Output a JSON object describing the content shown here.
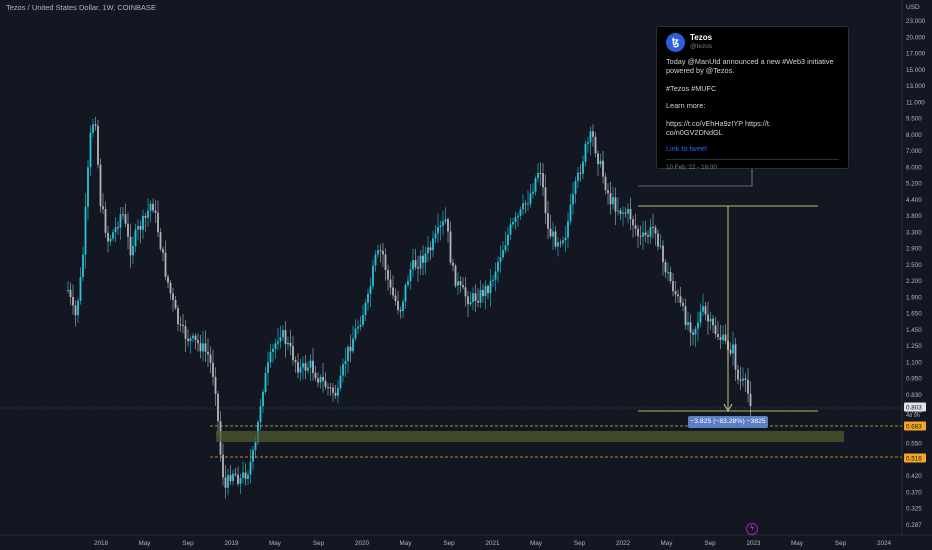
{
  "header": {
    "title": "Tezos / United States Dollar, 1W, COINBASE"
  },
  "axis": {
    "currency": "USD",
    "price_ticks": [
      "23.000",
      "20.000",
      "17.000",
      "15.000",
      "13.000",
      "11.000",
      "9.500",
      "8.000",
      "7.000",
      "6.000",
      "5.200",
      "4.400",
      "3.800",
      "3.300",
      "2.900",
      "2.500",
      "2.200",
      "1.900",
      "1.650",
      "1.450",
      "1.250",
      "1.100",
      "0.950",
      "0.830",
      "0.720",
      "0.630",
      "0.550",
      "0.480",
      "0.420",
      "0.370",
      "0.325",
      "0.287"
    ],
    "time_ticks": [
      "2018",
      "May",
      "Sep",
      "2019",
      "May",
      "Sep",
      "2020",
      "May",
      "Sep",
      "2021",
      "May",
      "Sep",
      "2022",
      "May",
      "Sep",
      "2023",
      "May",
      "Sep",
      "2024"
    ],
    "current_price": "0.803",
    "countdown": "4d 9h",
    "level_upper": "0.683",
    "level_lower": "0.516"
  },
  "tweet": {
    "name": "Tezos",
    "handle": "@tezos",
    "avatar_glyph": "ꜩ",
    "line1": "Today @ManUtd announced a new #Web3 initiative",
    "line2": "powered by @Tezos.",
    "line3": "#Tezos #MUFC",
    "line4": "Learn more:",
    "line5": "https://t.co/vEhHa9zIYP https://t.",
    "line6": "co/n0GV2DNdGL",
    "link_label": "Link to tweet",
    "date": "10 Feb '22 - 18:00"
  },
  "measure": {
    "label": "−3.825 (−83.28%) −3825"
  },
  "colors": {
    "up": "#26c6da",
    "down": "#b2b5be",
    "zone": "#505b2e",
    "measure": "#f0f08c",
    "level": "#f5a623"
  }
}
